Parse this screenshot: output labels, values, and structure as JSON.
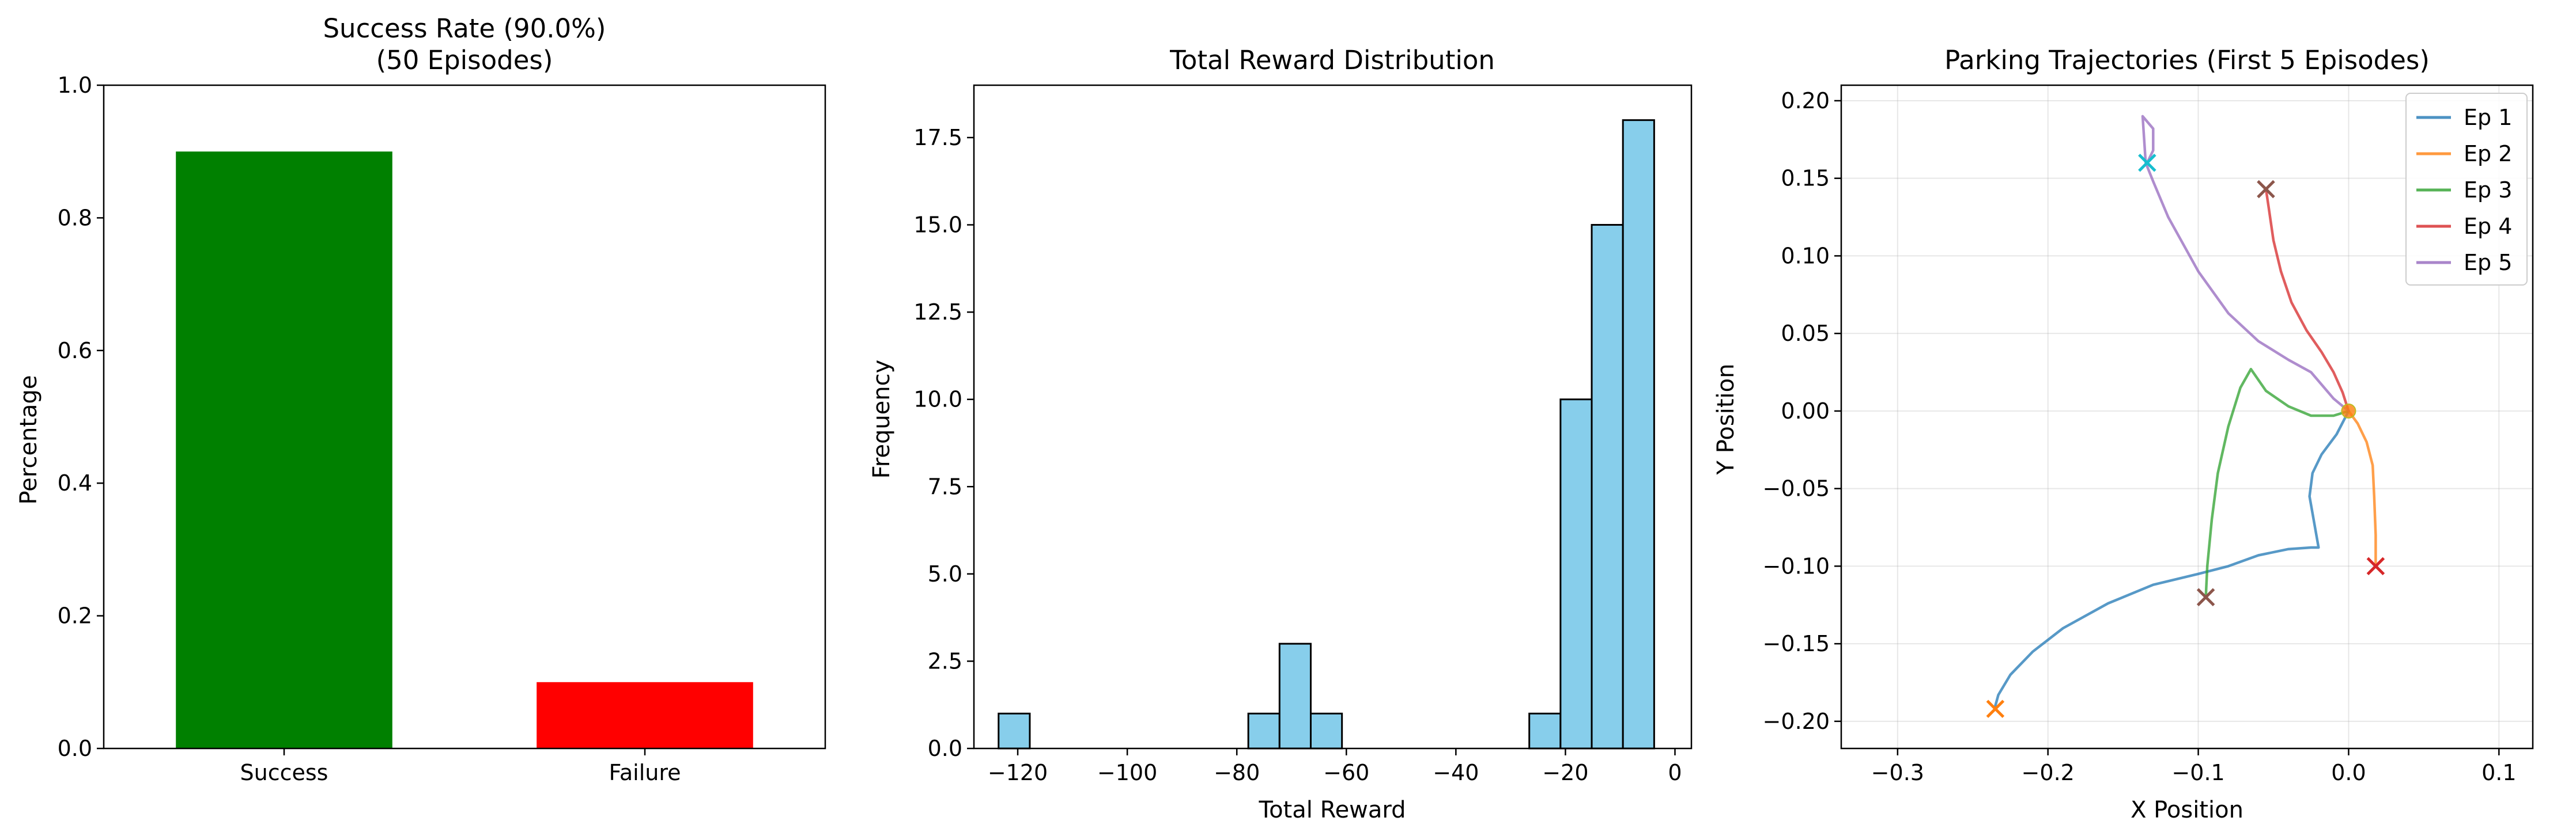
{
  "chart_data": [
    {
      "type": "bar",
      "title": "Success Rate (90.0%)",
      "subtitle": "(50 Episodes)",
      "xlabel": "",
      "ylabel": "Percentage",
      "categories": [
        "Success",
        "Failure"
      ],
      "values": [
        0.9,
        0.1
      ],
      "colors": [
        "#008000",
        "#ff0000"
      ],
      "ylim": [
        0,
        1.0
      ],
      "yticks": [
        0.0,
        0.2,
        0.4,
        0.6,
        0.8,
        1.0
      ],
      "ytick_labels": [
        "0.0",
        "0.2",
        "0.4",
        "0.6",
        "0.8",
        "1.0"
      ],
      "grid": false
    },
    {
      "type": "bar",
      "subtype": "histogram",
      "title": "Total Reward Distribution",
      "xlabel": "Total Reward",
      "ylabel": "Frequency",
      "bar_color": "#87ceeb",
      "edge_color": "#000000",
      "bins": [
        {
          "x0": -123.5,
          "x1": -117.8,
          "count": 1
        },
        {
          "x0": -117.8,
          "x1": -112.1,
          "count": 0
        },
        {
          "x0": -112.1,
          "x1": -106.4,
          "count": 0
        },
        {
          "x0": -106.4,
          "x1": -100.7,
          "count": 0
        },
        {
          "x0": -100.7,
          "x1": -95.0,
          "count": 0
        },
        {
          "x0": -95.0,
          "x1": -89.3,
          "count": 0
        },
        {
          "x0": -89.3,
          "x1": -83.6,
          "count": 0
        },
        {
          "x0": -83.6,
          "x1": -77.9,
          "count": 0
        },
        {
          "x0": -77.9,
          "x1": -72.2,
          "count": 1
        },
        {
          "x0": -72.2,
          "x1": -66.5,
          "count": 3
        },
        {
          "x0": -66.5,
          "x1": -60.8,
          "count": 1
        },
        {
          "x0": -60.8,
          "x1": -55.1,
          "count": 0
        },
        {
          "x0": -55.1,
          "x1": -49.4,
          "count": 0
        },
        {
          "x0": -49.4,
          "x1": -43.7,
          "count": 0
        },
        {
          "x0": -43.7,
          "x1": -38.0,
          "count": 0
        },
        {
          "x0": -38.0,
          "x1": -32.3,
          "count": 0
        },
        {
          "x0": -32.3,
          "x1": -26.6,
          "count": 0
        },
        {
          "x0": -26.6,
          "x1": -20.9,
          "count": 1
        },
        {
          "x0": -20.9,
          "x1": -15.2,
          "count": 10
        },
        {
          "x0": -15.2,
          "x1": -9.5,
          "count": 15
        },
        {
          "x0": -9.5,
          "x1": -3.8,
          "count": 18
        }
      ],
      "xlim": [
        -128,
        3
      ],
      "ylim": [
        0,
        19
      ],
      "xticks": [
        -120,
        -100,
        -80,
        -60,
        -40,
        -20,
        0
      ],
      "xtick_labels": [
        "−120",
        "−100",
        "−80",
        "−60",
        "−40",
        "−20",
        "0"
      ],
      "yticks": [
        0.0,
        2.5,
        5.0,
        7.5,
        10.0,
        12.5,
        15.0,
        17.5
      ],
      "ytick_labels": [
        "0.0",
        "2.5",
        "5.0",
        "7.5",
        "10.0",
        "12.5",
        "15.0",
        "17.5"
      ],
      "grid": false
    },
    {
      "type": "line",
      "title": "Parking Trajectories (First 5 Episodes)",
      "xlabel": "X Position",
      "ylabel": "Y Position",
      "xlim": [
        -0.3375,
        0.1225
      ],
      "ylim": [
        -0.2175,
        0.21
      ],
      "xticks": [
        -0.3,
        -0.2,
        -0.1,
        0.0,
        0.1
      ],
      "xtick_labels": [
        "−0.3",
        "−0.2",
        "−0.1",
        "0.0",
        "0.1"
      ],
      "yticks": [
        -0.2,
        -0.15,
        -0.1,
        -0.05,
        0.0,
        0.05,
        0.1,
        0.15,
        0.2
      ],
      "ytick_labels": [
        "−0.20",
        "−0.15",
        "−0.10",
        "−0.05",
        "0.00",
        "0.05",
        "0.10",
        "0.15",
        "0.20"
      ],
      "grid": true,
      "legend_position": "top-right",
      "series": [
        {
          "name": "Ep 1",
          "color": "#1f77b4",
          "x": [
            0.0,
            -0.008,
            -0.018,
            -0.024,
            -0.026,
            -0.02,
            -0.025,
            -0.04,
            -0.06,
            -0.08,
            -0.1,
            -0.13,
            -0.16,
            -0.19,
            -0.21,
            -0.225,
            -0.233,
            -0.235
          ],
          "y": [
            0.0,
            -0.015,
            -0.028,
            -0.04,
            -0.055,
            -0.088,
            -0.088,
            -0.089,
            -0.093,
            -0.1,
            -0.105,
            -0.112,
            -0.124,
            -0.14,
            -0.155,
            -0.17,
            -0.183,
            -0.19
          ]
        },
        {
          "name": "Ep 2",
          "color": "#ff7f0e",
          "x": [
            0.0,
            0.006,
            0.012,
            0.016,
            0.017,
            0.018,
            0.018
          ],
          "y": [
            0.0,
            -0.008,
            -0.02,
            -0.035,
            -0.055,
            -0.08,
            -0.1
          ]
        },
        {
          "name": "Ep 3",
          "color": "#2ca02c",
          "x": [
            0.0,
            -0.01,
            -0.025,
            -0.04,
            -0.055,
            -0.065,
            -0.072,
            -0.08,
            -0.087,
            -0.091,
            -0.094,
            -0.095
          ],
          "y": [
            0.0,
            -0.003,
            -0.003,
            0.003,
            0.013,
            0.027,
            0.015,
            -0.01,
            -0.04,
            -0.07,
            -0.1,
            -0.12
          ]
        },
        {
          "name": "Ep 4",
          "color": "#d62728",
          "x": [
            0.0,
            -0.004,
            -0.01,
            -0.018,
            -0.028,
            -0.038,
            -0.045,
            -0.05,
            -0.053,
            -0.055
          ],
          "y": [
            0.0,
            0.012,
            0.025,
            0.038,
            0.052,
            0.07,
            0.09,
            0.11,
            0.13,
            0.143
          ]
        },
        {
          "name": "Ep 5",
          "color": "#9467bd",
          "x": [
            0.0,
            -0.01,
            -0.025,
            -0.04,
            -0.06,
            -0.08,
            -0.1,
            -0.12,
            -0.13,
            -0.135,
            -0.137,
            -0.13,
            -0.13,
            -0.134
          ],
          "y": [
            0.0,
            0.008,
            0.025,
            0.033,
            0.045,
            0.063,
            0.09,
            0.125,
            0.148,
            0.16,
            0.19,
            0.182,
            0.168,
            0.16
          ]
        }
      ],
      "end_markers": [
        {
          "x": -0.235,
          "y": -0.192,
          "color": "#ff7f0e"
        },
        {
          "x": 0.018,
          "y": -0.1,
          "color": "#d62728"
        },
        {
          "x": -0.095,
          "y": -0.12,
          "color": "#8c564b"
        },
        {
          "x": -0.055,
          "y": 0.143,
          "color": "#8c564b"
        },
        {
          "x": -0.134,
          "y": 0.16,
          "color": "#17becf"
        }
      ],
      "start_point": {
        "x": 0.0,
        "y": 0.0
      }
    }
  ]
}
